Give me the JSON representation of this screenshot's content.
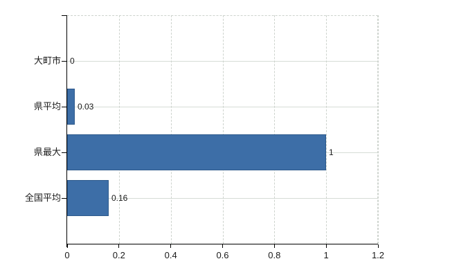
{
  "chart_data": {
    "type": "bar",
    "orientation": "horizontal",
    "title": "",
    "xlabel": "",
    "ylabel": "",
    "categories": [
      "大町市",
      "県平均",
      "県最大",
      "全国平均"
    ],
    "values": [
      0,
      0.03,
      1,
      0.16
    ],
    "value_labels": [
      "0",
      "0.03",
      "1",
      "0.16"
    ],
    "xlim": [
      0,
      1.2
    ],
    "x_ticks": [
      0,
      0.2,
      0.4,
      0.6,
      0.8,
      1,
      1.2
    ],
    "x_tick_labels": [
      "0",
      "0.2",
      "0.4",
      "0.6",
      "0.8",
      "1",
      "1.2"
    ],
    "grid": "on",
    "legend": "none"
  },
  "style": {
    "background": "#ffffff",
    "bar_fill": "#3d6ea7",
    "bar_border": "#2e5a8c",
    "axis_color": "#000000",
    "grid_color": "#d6dcd6",
    "grid_dashed_color": "#cdd3cd",
    "text_color": "#1a1a1a"
  }
}
